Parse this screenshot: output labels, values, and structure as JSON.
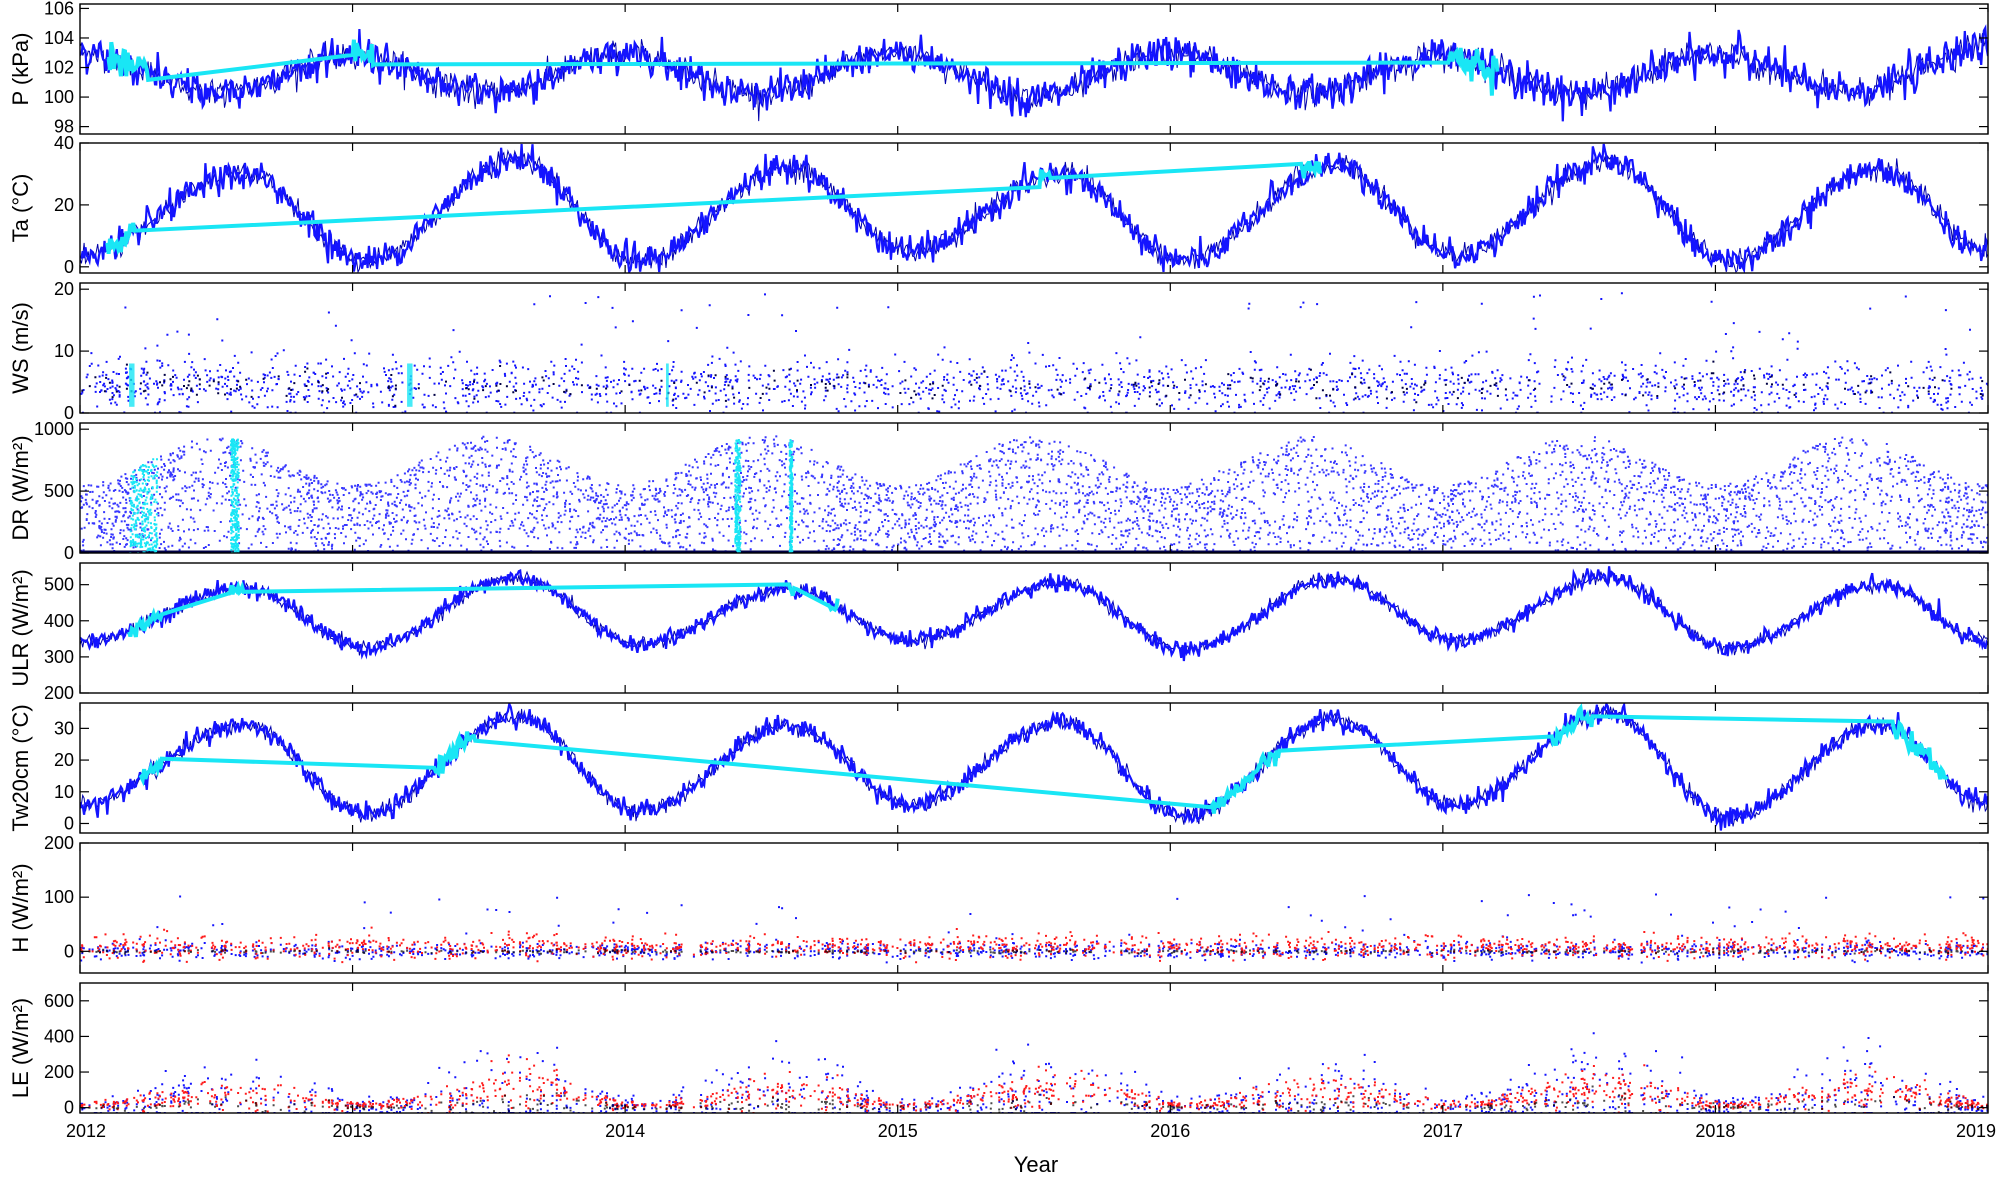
{
  "colors": {
    "main": "#1414ff",
    "gap": "#19e6f5",
    "model": "#ff1a1a",
    "obs_dark": "#000000",
    "axis": "#000000"
  },
  "chart_data": {
    "type": "scatter",
    "xlabel": "Year",
    "xlim": [
      2012,
      2019
    ],
    "xticks": [
      "2012",
      "2013",
      "2014",
      "2015",
      "2016",
      "2017",
      "2018",
      "2019"
    ],
    "panels": [
      {
        "id": "P",
        "ylabel": "P (kPa)",
        "ylim": [
          97.5,
          106.3
        ],
        "yticks": [
          98,
          100,
          102,
          104,
          106
        ],
        "kind": "line",
        "seasonal": [
          {
            "x": 2012.0,
            "y": 103.0
          },
          {
            "x": 2012.5,
            "y": 100.3
          },
          {
            "x": 2013.0,
            "y": 102.8
          },
          {
            "x": 2013.5,
            "y": 100.3
          },
          {
            "x": 2014.0,
            "y": 102.9
          },
          {
            "x": 2014.5,
            "y": 100.2
          },
          {
            "x": 2015.0,
            "y": 103.0
          },
          {
            "x": 2015.5,
            "y": 100.0
          },
          {
            "x": 2016.0,
            "y": 103.0
          },
          {
            "x": 2016.5,
            "y": 100.3
          },
          {
            "x": 2017.0,
            "y": 102.8
          },
          {
            "x": 2017.5,
            "y": 100.2
          },
          {
            "x": 2018.0,
            "y": 102.9
          },
          {
            "x": 2018.5,
            "y": 100.3
          },
          {
            "x": 2019.0,
            "y": 103.5
          }
        ],
        "noise": 1.3,
        "gap_periods": [
          [
            2012.1,
            2012.25
          ],
          [
            2013.0,
            2013.08
          ],
          [
            2017.02,
            2017.2
          ]
        ]
      },
      {
        "id": "Ta",
        "ylabel": "Ta (°C)",
        "ylim": [
          -2,
          40
        ],
        "yticks": [
          0,
          20,
          40
        ],
        "kind": "line",
        "seasonal": [
          {
            "x": 2012.0,
            "y": 4
          },
          {
            "x": 2012.6,
            "y": 30
          },
          {
            "x": 2013.05,
            "y": 2
          },
          {
            "x": 2013.6,
            "y": 35
          },
          {
            "x": 2014.05,
            "y": 2
          },
          {
            "x": 2014.6,
            "y": 32
          },
          {
            "x": 2015.05,
            "y": 5
          },
          {
            "x": 2015.6,
            "y": 30
          },
          {
            "x": 2016.05,
            "y": 2
          },
          {
            "x": 2016.6,
            "y": 33
          },
          {
            "x": 2017.05,
            "y": 4
          },
          {
            "x": 2017.6,
            "y": 34
          },
          {
            "x": 2018.05,
            "y": 2
          },
          {
            "x": 2018.6,
            "y": 32
          },
          {
            "x": 2019.0,
            "y": 5
          }
        ],
        "noise": 5,
        "gap_periods": [
          [
            2012.1,
            2012.2
          ],
          [
            2015.52,
            2015.56
          ],
          [
            2016.48,
            2016.55
          ]
        ]
      },
      {
        "id": "WS",
        "ylabel": "WS (m/s)",
        "ylim": [
          0,
          21
        ],
        "yticks": [
          0,
          10,
          20
        ],
        "kind": "scatter",
        "base": 4.5,
        "spread": 4,
        "max": 20,
        "gap_periods": [
          [
            2012.18,
            2012.2
          ],
          [
            2013.2,
            2013.22
          ],
          [
            2014.15,
            2014.16
          ]
        ]
      },
      {
        "id": "DR",
        "ylabel": "DR (W/m²)",
        "ylim": [
          0,
          1050
        ],
        "yticks": [
          0,
          500,
          1000
        ],
        "kind": "radiation",
        "envelope": [
          {
            "x": 2012.0,
            "y": 560
          },
          {
            "x": 2012.5,
            "y": 950
          },
          {
            "x": 2013.0,
            "y": 560
          },
          {
            "x": 2013.5,
            "y": 950
          },
          {
            "x": 2014.0,
            "y": 560
          },
          {
            "x": 2014.5,
            "y": 960
          },
          {
            "x": 2015.0,
            "y": 560
          },
          {
            "x": 2015.5,
            "y": 950
          },
          {
            "x": 2016.0,
            "y": 560
          },
          {
            "x": 2016.5,
            "y": 960
          },
          {
            "x": 2017.0,
            "y": 560
          },
          {
            "x": 2017.5,
            "y": 960
          },
          {
            "x": 2018.0,
            "y": 560
          },
          {
            "x": 2018.5,
            "y": 950
          },
          {
            "x": 2019.0,
            "y": 560
          }
        ],
        "gap_periods": [
          [
            2012.18,
            2012.28
          ],
          [
            2012.55,
            2012.58
          ],
          [
            2014.4,
            2014.42
          ],
          [
            2014.6,
            2014.61
          ]
        ]
      },
      {
        "id": "ULR",
        "ylabel": "ULR (W/m²)",
        "ylim": [
          200,
          560
        ],
        "yticks": [
          200,
          300,
          400,
          500
        ],
        "kind": "line",
        "seasonal": [
          {
            "x": 2012.0,
            "y": 340
          },
          {
            "x": 2012.6,
            "y": 490
          },
          {
            "x": 2013.05,
            "y": 325
          },
          {
            "x": 2013.6,
            "y": 520
          },
          {
            "x": 2014.05,
            "y": 335
          },
          {
            "x": 2014.6,
            "y": 490
          },
          {
            "x": 2015.05,
            "y": 345
          },
          {
            "x": 2015.6,
            "y": 505
          },
          {
            "x": 2016.05,
            "y": 320
          },
          {
            "x": 2016.6,
            "y": 515
          },
          {
            "x": 2017.05,
            "y": 345
          },
          {
            "x": 2017.6,
            "y": 520
          },
          {
            "x": 2018.05,
            "y": 325
          },
          {
            "x": 2018.6,
            "y": 500
          },
          {
            "x": 2019.0,
            "y": 345
          }
        ],
        "noise": 25,
        "gap_periods": [
          [
            2012.18,
            2012.3
          ],
          [
            2012.55,
            2012.6
          ],
          [
            2014.6,
            2014.63
          ],
          [
            2014.75,
            2014.78
          ]
        ]
      },
      {
        "id": "Tw",
        "ylabel": "Tw20cm (°C)",
        "ylim": [
          -3,
          38
        ],
        "yticks": [
          0,
          10,
          20,
          30
        ],
        "kind": "line",
        "seasonal": [
          {
            "x": 2012.0,
            "y": 6
          },
          {
            "x": 2012.6,
            "y": 31
          },
          {
            "x": 2013.05,
            "y": 3
          },
          {
            "x": 2013.6,
            "y": 34
          },
          {
            "x": 2014.05,
            "y": 4
          },
          {
            "x": 2014.6,
            "y": 31
          },
          {
            "x": 2015.05,
            "y": 6
          },
          {
            "x": 2015.6,
            "y": 32
          },
          {
            "x": 2016.05,
            "y": 2
          },
          {
            "x": 2016.6,
            "y": 33
          },
          {
            "x": 2017.05,
            "y": 6
          },
          {
            "x": 2017.6,
            "y": 35
          },
          {
            "x": 2018.05,
            "y": 2
          },
          {
            "x": 2018.6,
            "y": 31
          },
          {
            "x": 2019.0,
            "y": 6
          }
        ],
        "noise": 3.5,
        "gap_periods": [
          [
            2012.22,
            2012.3
          ],
          [
            2013.3,
            2013.45
          ],
          [
            2016.15,
            2016.4
          ],
          [
            2017.4,
            2017.55
          ],
          [
            2018.65,
            2018.85
          ]
        ]
      },
      {
        "id": "H",
        "ylabel": "H (W/m²)",
        "ylim": [
          -40,
          200
        ],
        "yticks": [
          0,
          100,
          200
        ],
        "kind": "flux",
        "base": 3,
        "spread": 12,
        "spikes": 110,
        "model_base": 10,
        "model_spread": 10
      },
      {
        "id": "LE",
        "ylabel": "LE (W/m²)",
        "ylim": [
          -30,
          700
        ],
        "yticks": [
          0,
          200,
          400,
          600
        ],
        "kind": "flux_seasonal",
        "seasonal_amp": [
          {
            "x": 2012.0,
            "y": 40
          },
          {
            "x": 2012.6,
            "y": 180
          },
          {
            "x": 2013.05,
            "y": 40
          },
          {
            "x": 2013.6,
            "y": 260
          },
          {
            "x": 2014.05,
            "y": 40
          },
          {
            "x": 2014.6,
            "y": 200
          },
          {
            "x": 2015.05,
            "y": 40
          },
          {
            "x": 2015.6,
            "y": 230
          },
          {
            "x": 2016.05,
            "y": 40
          },
          {
            "x": 2016.6,
            "y": 200
          },
          {
            "x": 2017.05,
            "y": 40
          },
          {
            "x": 2017.6,
            "y": 260
          },
          {
            "x": 2018.05,
            "y": 40
          },
          {
            "x": 2018.6,
            "y": 220
          },
          {
            "x": 2019.0,
            "y": 40
          }
        ],
        "model_scale": 0.45
      }
    ]
  }
}
